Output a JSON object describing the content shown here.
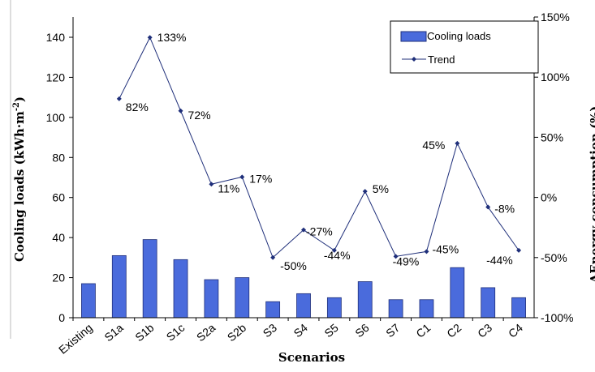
{
  "chart_data": {
    "type": "bar",
    "categories": [
      "Existing",
      "S1a",
      "S1b",
      "S1c",
      "S2a",
      "S2b",
      "S3",
      "S4",
      "S5",
      "S6",
      "S7",
      "C1",
      "C2",
      "C3",
      "C4"
    ],
    "series": [
      {
        "name": "Cooling loads",
        "type": "bar",
        "axis": "left",
        "color": "#4a6bdc",
        "values": [
          17,
          31,
          39,
          29,
          19,
          20,
          8,
          12,
          10,
          18,
          9,
          9,
          25,
          15,
          10
        ]
      },
      {
        "name": "Trend",
        "type": "line",
        "axis": "right",
        "color": "#1f2f7a",
        "values": [
          null,
          82,
          133,
          72,
          11,
          17,
          -50,
          -27,
          -44,
          5,
          -49,
          -45,
          45,
          -8,
          -44
        ],
        "labels": [
          "",
          "82%",
          "133%",
          "72%",
          "11%",
          "17%",
          "-50%",
          "-27%",
          "-44%",
          "5%",
          "-49%",
          "-45%",
          "45%",
          "-8%",
          "-44%"
        ]
      }
    ],
    "xlabel": "Scenarios",
    "ylabel": "Cooling loads (kWh·m",
    "ylabel_sup": "-2",
    "ylabel_close": ")",
    "y2label": "ΔEnergy consumption (%)",
    "ylim": [
      0,
      150
    ],
    "yticks": [
      "0",
      "20",
      "40",
      "60",
      "80",
      "100",
      "120",
      "140"
    ],
    "y2lim": [
      -100,
      150
    ],
    "y2ticks": [
      "-100%",
      "-50%",
      "0%",
      "50%",
      "100%",
      "150%"
    ],
    "legend_position": "top-right",
    "grid": false
  }
}
